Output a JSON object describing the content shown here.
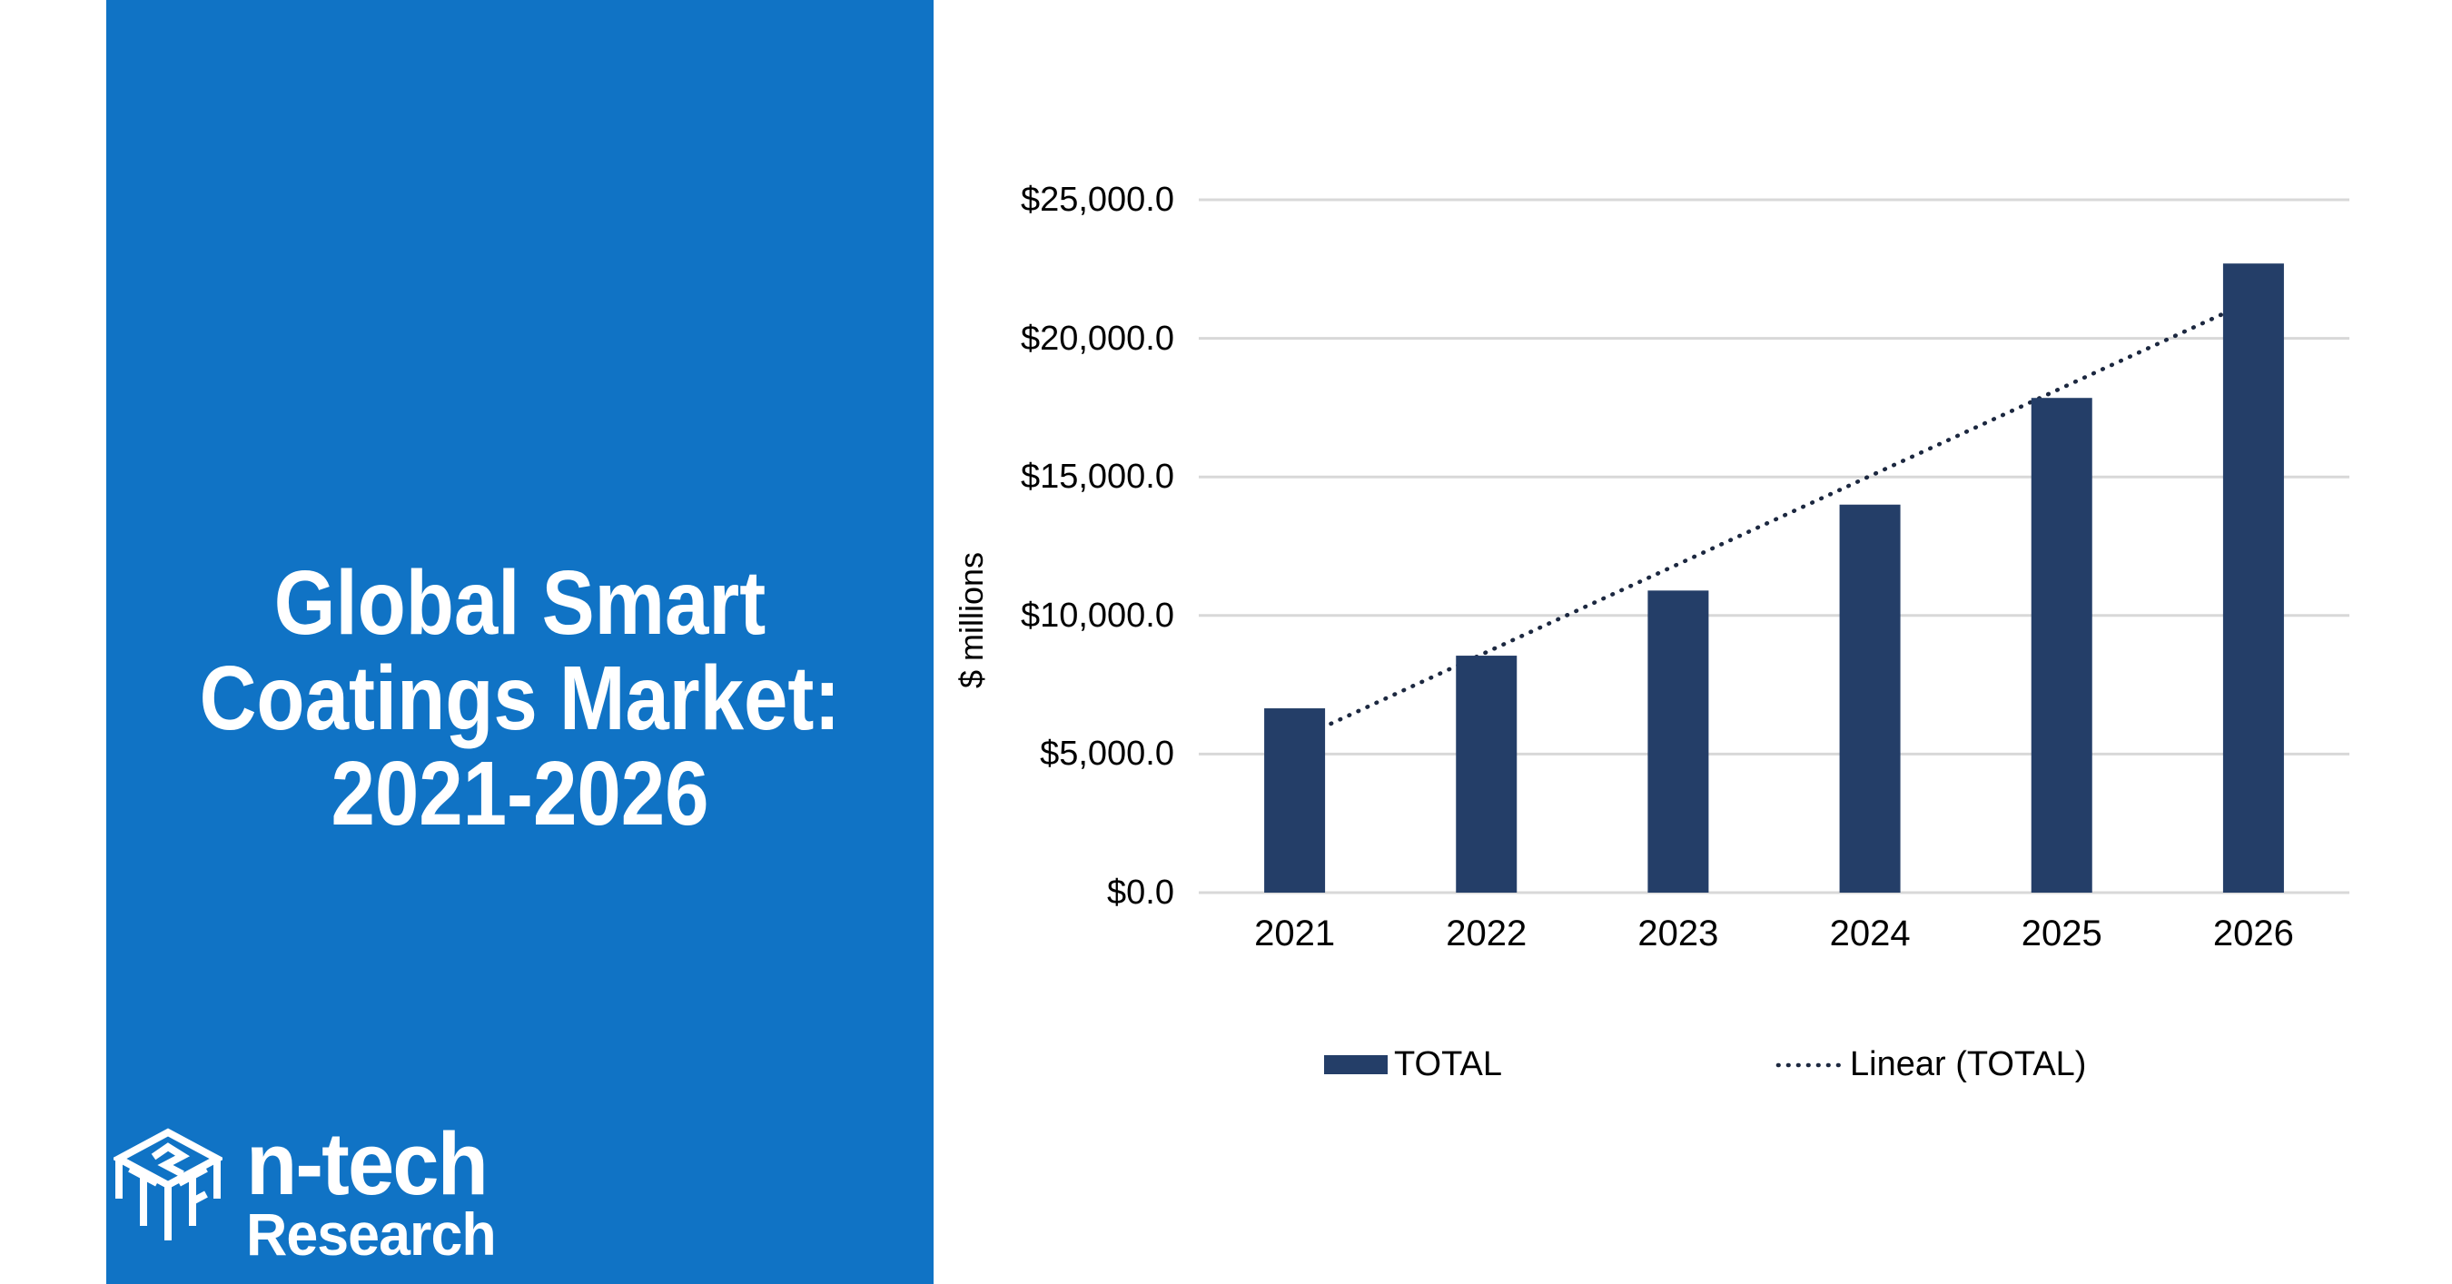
{
  "panel": {
    "background": "#1073C5",
    "title_lines": [
      "Global Smart",
      "Coatings Market:",
      "2021-2026"
    ],
    "logo": {
      "name": "n-tech",
      "sub": "Research"
    }
  },
  "chart_data": {
    "type": "bar",
    "title": "Global Smart Coatings Market: 2021-2026",
    "categories": [
      "2021",
      "2022",
      "2023",
      "2024",
      "2025",
      "2026"
    ],
    "series": [
      {
        "name": "TOTAL",
        "values": [
          6650,
          8550,
          10900,
          14000,
          17850,
          22700
        ]
      }
    ],
    "trendline": {
      "label": "Linear (TOTAL)",
      "type": "linear",
      "style": "dotted"
    },
    "xlabel": "",
    "ylabel": "$ millions",
    "ylim": [
      0,
      25000
    ],
    "ytick_step": 5000,
    "ytick_labels": [
      "$0.0",
      "$5,000.0",
      "$10,000.0",
      "$15,000.0",
      "$20,000.0",
      "$25,000.0"
    ],
    "grid": true,
    "legend_position": "bottom",
    "colors": {
      "bar": "#243E68",
      "trend": "#1C2840",
      "gridline": "#D8D8D8",
      "text": "#000000"
    }
  }
}
